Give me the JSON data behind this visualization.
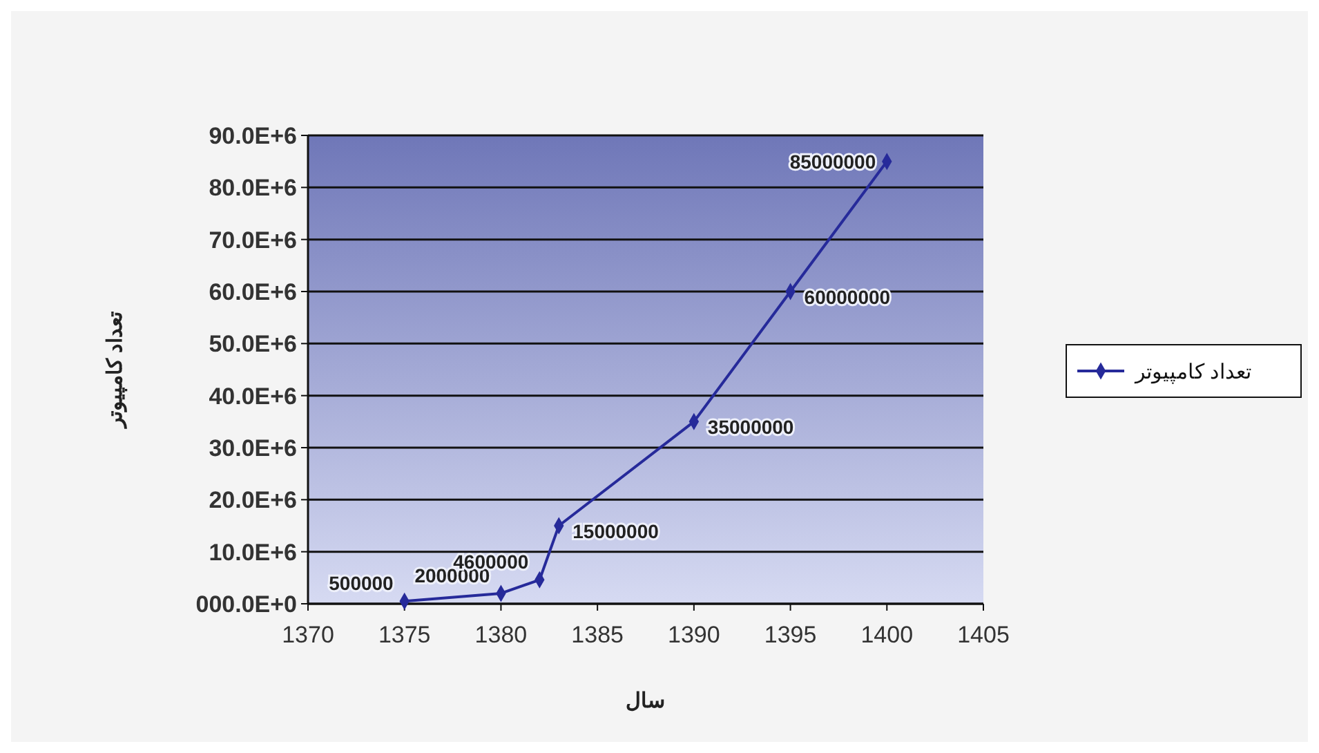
{
  "chart_data": {
    "type": "line",
    "xlabel": "سال",
    "ylabel": "تعداد کامپیوتر",
    "x": [
      1375,
      1380,
      1382,
      1383,
      1390,
      1395,
      1400
    ],
    "series": [
      {
        "name": "تعداد کامپیوتر",
        "color": "#262a9a",
        "values": [
          500000,
          2000000,
          4600000,
          15000000,
          35000000,
          60000000,
          85000000
        ]
      }
    ],
    "data_labels": true,
    "marker": "diamond",
    "legend": "right",
    "grid": "y",
    "xlim": [
      1370,
      1405
    ],
    "xticks": [
      1370,
      1375,
      1380,
      1385,
      1390,
      1395,
      1400,
      1405
    ],
    "ylim": [
      0,
      90000000
    ],
    "yticks": [
      {
        "value": 0,
        "label": "000.0E+0"
      },
      {
        "value": 10000000,
        "label": "10.0E+6"
      },
      {
        "value": 20000000,
        "label": "20.0E+6"
      },
      {
        "value": 30000000,
        "label": "30.0E+6"
      },
      {
        "value": 40000000,
        "label": "40.0E+6"
      },
      {
        "value": 50000000,
        "label": "50.0E+6"
      },
      {
        "value": 60000000,
        "label": "60.0E+6"
      },
      {
        "value": 70000000,
        "label": "70.0E+6"
      },
      {
        "value": 80000000,
        "label": "80.0E+6"
      },
      {
        "value": 90000000,
        "label": "90.0E+6"
      }
    ]
  }
}
